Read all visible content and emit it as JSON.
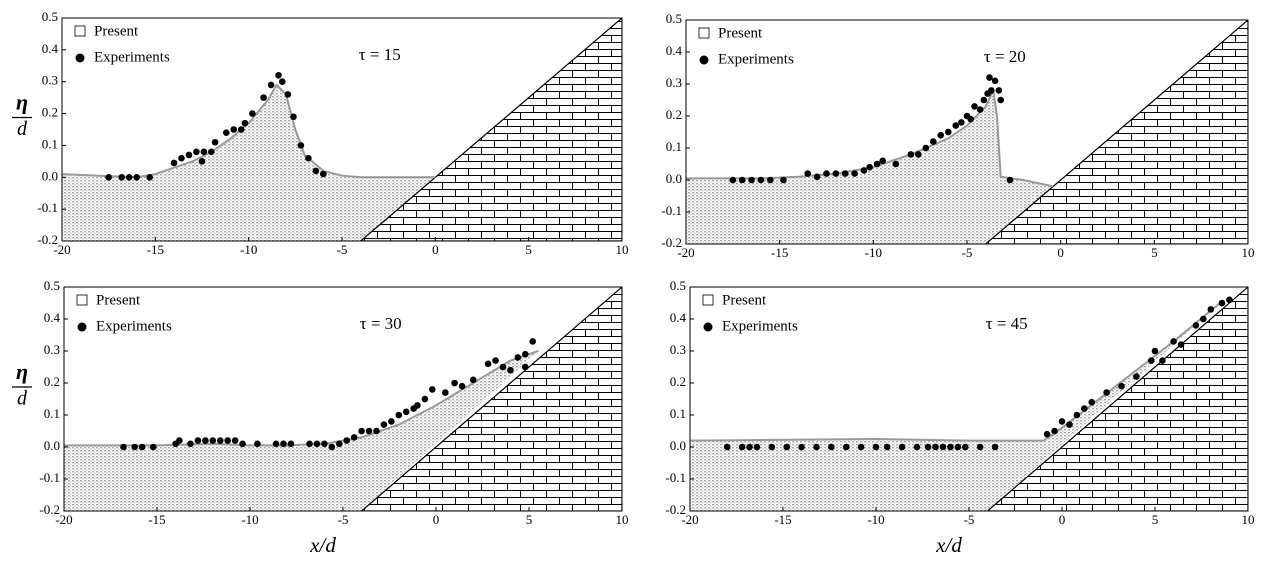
{
  "chart_data": [
    {
      "type": "scatter",
      "annotation": "τ = 15",
      "ylabel": {
        "numerator": "η",
        "denominator": "d"
      },
      "xlim": [
        -20,
        10
      ],
      "ylim": [
        -0.2,
        0.5
      ],
      "xticks": [
        -20,
        -15,
        -10,
        -5,
        0,
        5,
        10
      ],
      "yticks": [
        -0.2,
        -0.1,
        {
          "value": 0,
          "label": "0.0"
        },
        0.1,
        0.2,
        0.3,
        0.4,
        0.5
      ],
      "beach": {
        "x": [
          -4,
          10
        ],
        "y": [
          -0.2,
          0.5
        ]
      },
      "series": [
        {
          "name": "Present",
          "color": "#999999",
          "x": [
            -20,
            -18,
            -16,
            -15,
            -14,
            -13,
            -12,
            -11,
            -10,
            -9,
            -8.5,
            -8,
            -7.5,
            -7,
            -6,
            -5,
            -4,
            -2,
            0
          ],
          "y": [
            0.01,
            0.005,
            0,
            0.01,
            0.03,
            0.05,
            0.08,
            0.12,
            0.17,
            0.24,
            0.29,
            0.26,
            0.15,
            0.07,
            0.02,
            0.005,
            0,
            0,
            0
          ]
        },
        {
          "name": "Experiments",
          "color": "#000000",
          "x": [
            -17.5,
            -16.8,
            -16.4,
            -16,
            -15.3,
            -14,
            -13.6,
            -13.2,
            -12.8,
            -12.5,
            -12.4,
            -12,
            -11.8,
            -11.2,
            -10.8,
            -10.4,
            -10.2,
            -9.8,
            -9.2,
            -8.8,
            -8.4,
            -8.2,
            -7.9,
            -7.6,
            -7.2,
            -6.8,
            -6.4,
            -6
          ],
          "y": [
            0,
            0,
            0,
            0,
            0,
            0.045,
            0.06,
            0.07,
            0.08,
            0.05,
            0.08,
            0.08,
            0.11,
            0.14,
            0.15,
            0.15,
            0.17,
            0.2,
            0.25,
            0.29,
            0.32,
            0.3,
            0.26,
            0.19,
            0.1,
            0.06,
            0.02,
            0.01
          ]
        }
      ]
    },
    {
      "type": "scatter",
      "annotation": "τ = 20",
      "xlim": [
        -20,
        10
      ],
      "ylim": [
        -0.2,
        0.5
      ],
      "xticks": [
        -20,
        -15,
        -10,
        -5,
        0,
        5,
        10
      ],
      "yticks": [
        -0.2,
        -0.1,
        {
          "value": 0,
          "label": "0.0"
        },
        0.1,
        0.2,
        0.3,
        0.4,
        0.5
      ],
      "beach": {
        "x": [
          -4,
          10
        ],
        "y": [
          -0.2,
          0.5
        ]
      },
      "series": [
        {
          "name": "Present",
          "color": "#999999",
          "x": [
            -20,
            -16,
            -14,
            -12,
            -10,
            -8,
            -6,
            -5,
            -4,
            -3.6,
            -3.4,
            -3.2,
            -2,
            -0.4
          ],
          "y": [
            0.005,
            0.005,
            0.01,
            0.02,
            0.04,
            0.08,
            0.13,
            0.17,
            0.23,
            0.28,
            0.2,
            0.01,
            0,
            -0.02
          ]
        },
        {
          "name": "Experiments",
          "color": "#000000",
          "x": [
            -17.5,
            -17,
            -16.5,
            -16,
            -15.5,
            -14.8,
            -13.5,
            -13,
            -12.5,
            -12,
            -11.5,
            -11,
            -10.5,
            -10.2,
            -9.8,
            -9.5,
            -8.8,
            -8,
            -7.6,
            -7.2,
            -6.8,
            -6.4,
            -6,
            -5.6,
            -5.3,
            -5,
            -4.8,
            -4.6,
            -4.3,
            -4.1,
            -3.9,
            -3.8,
            -3.7,
            -3.5,
            -3.3,
            -3.2,
            -2.7
          ],
          "y": [
            0,
            0,
            0,
            0,
            0,
            0,
            0.02,
            0.01,
            0.02,
            0.02,
            0.02,
            0.02,
            0.03,
            0.04,
            0.05,
            0.06,
            0.05,
            0.08,
            0.08,
            0.1,
            0.12,
            0.14,
            0.15,
            0.17,
            0.18,
            0.2,
            0.19,
            0.23,
            0.22,
            0.25,
            0.27,
            0.32,
            0.28,
            0.31,
            0.28,
            0.25,
            0
          ]
        }
      ]
    },
    {
      "type": "scatter",
      "annotation": "τ = 30",
      "ylabel": {
        "numerator": "η",
        "denominator": "d"
      },
      "xlabel": "x/d",
      "xlim": [
        -20,
        10
      ],
      "ylim": [
        -0.2,
        0.5
      ],
      "xticks": [
        -20,
        -15,
        -10,
        -5,
        0,
        5,
        10
      ],
      "yticks": [
        -0.2,
        -0.1,
        {
          "value": 0,
          "label": "0.0"
        },
        0.1,
        0.2,
        0.3,
        0.4,
        0.5
      ],
      "beach": {
        "x": [
          -4,
          10
        ],
        "y": [
          -0.2,
          0.5
        ]
      },
      "series": [
        {
          "name": "Present",
          "color": "#999999",
          "x": [
            -20,
            -15,
            -12,
            -10,
            -8,
            -6,
            -4,
            -2,
            0,
            2,
            4,
            5.5
          ],
          "y": [
            0.005,
            0.005,
            0.01,
            0.005,
            0.005,
            0.01,
            0.03,
            0.07,
            0.13,
            0.2,
            0.27,
            0.3
          ]
        },
        {
          "name": "Experiments",
          "color": "#000000",
          "x": [
            -16.8,
            -16.2,
            -15.8,
            -15.2,
            -14,
            -13.8,
            -13.2,
            -12.8,
            -12.4,
            -12,
            -11.6,
            -11.2,
            -10.8,
            -10.4,
            -9.6,
            -8.6,
            -8.2,
            -7.8,
            -6.8,
            -6.4,
            -6,
            -5.6,
            -5.2,
            -4.8,
            -4.4,
            -4,
            -3.6,
            -3.2,
            -2.8,
            -2.4,
            -2,
            -1.6,
            -1.2,
            -1,
            -0.6,
            -0.2,
            0.5,
            1,
            1.4,
            2,
            2.8,
            3.2,
            3.6,
            4,
            4.4,
            4.8,
            4.8,
            5.2
          ],
          "y": [
            0,
            0,
            0,
            0,
            0.01,
            0.02,
            0.01,
            0.02,
            0.02,
            0.02,
            0.02,
            0.02,
            0.02,
            0.01,
            0.01,
            0.01,
            0.01,
            0.01,
            0.01,
            0.01,
            0.01,
            0,
            0.01,
            0.02,
            0.03,
            0.05,
            0.05,
            0.05,
            0.07,
            0.08,
            0.1,
            0.11,
            0.12,
            0.13,
            0.15,
            0.18,
            0.17,
            0.2,
            0.19,
            0.21,
            0.26,
            0.27,
            0.25,
            0.24,
            0.28,
            0.29,
            0.25,
            0.33
          ]
        }
      ]
    },
    {
      "type": "scatter",
      "annotation": "τ = 45",
      "xlabel": "x/d",
      "xlim": [
        -20,
        10
      ],
      "ylim": [
        -0.2,
        0.5
      ],
      "xticks": [
        -20,
        -15,
        -10,
        -5,
        0,
        5,
        10
      ],
      "yticks": [
        -0.2,
        -0.1,
        {
          "value": 0,
          "label": "0.0"
        },
        0.1,
        0.2,
        0.3,
        0.4,
        0.5
      ],
      "beach": {
        "x": [
          -4,
          10
        ],
        "y": [
          -0.2,
          0.5
        ]
      },
      "series": [
        {
          "name": "Present",
          "color": "#999999",
          "x": [
            -20,
            -10,
            -5,
            -1,
            0,
            2,
            4,
            6,
            8.5
          ],
          "y": [
            0.02,
            0.025,
            0.02,
            0.02,
            0.06,
            0.15,
            0.24,
            0.33,
            0.45
          ]
        },
        {
          "name": "Experiments",
          "color": "#000000",
          "x": [
            -18,
            -17.2,
            -16.8,
            -16.4,
            -15.6,
            -14.8,
            -14,
            -13.2,
            -12.4,
            -11.6,
            -10.8,
            -10,
            -9.4,
            -8.6,
            -7.8,
            -7.2,
            -6.8,
            -6.4,
            -6,
            -5.6,
            -5.2,
            -4.4,
            -3.6,
            -0.8,
            -0.4,
            0,
            0.4,
            0.8,
            1.2,
            1.6,
            2.4,
            3.2,
            4,
            4.8,
            5,
            5.4,
            6,
            6.4,
            7.2,
            7.6,
            8,
            8.6,
            9
          ],
          "y": [
            0,
            0,
            0,
            0,
            0,
            0,
            0,
            0,
            0,
            0,
            0,
            0,
            0,
            0,
            0,
            0,
            0,
            0,
            0,
            0,
            0,
            0,
            0,
            0.04,
            0.05,
            0.08,
            0.07,
            0.1,
            0.12,
            0.14,
            0.17,
            0.19,
            0.22,
            0.27,
            0.3,
            0.27,
            0.33,
            0.32,
            0.38,
            0.4,
            0.43,
            0.45,
            0.46
          ]
        }
      ]
    }
  ]
}
